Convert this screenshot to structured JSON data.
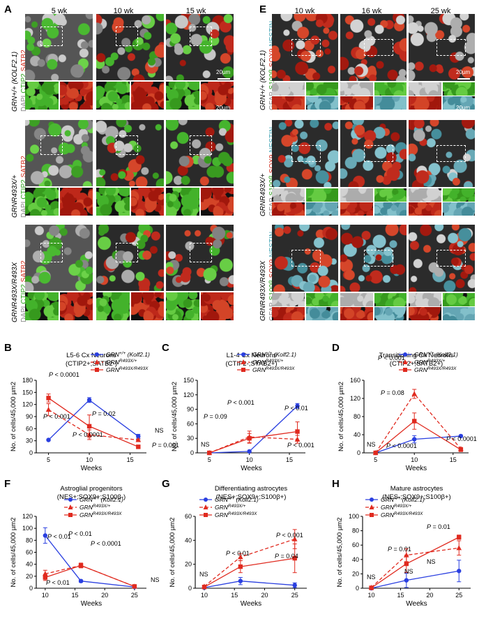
{
  "panel_A": {
    "letter": "A",
    "columns": [
      "5 wk",
      "10 wk",
      "15 wk"
    ],
    "rows": [
      {
        "genotype": "GRN+/+ (KOLF2.1)",
        "stain_dapi": "DAPI",
        "stain_ctip2": "CTIP2",
        "stain_satb2": "SATB2"
      },
      {
        "genotype": "GRNR493X/+",
        "stain_dapi": "DAPI",
        "stain_ctip2": "CTIP2",
        "stain_satb2": "SATB2"
      },
      {
        "genotype": "GRNR493X/R493X",
        "stain_dapi": "DAPI",
        "stain_ctip2": "CTIP2",
        "stain_satb2": "SATB2"
      }
    ],
    "scalebar1": "20µm",
    "scalebar2": "20µm"
  },
  "panel_E": {
    "letter": "E",
    "columns": [
      "10 wk",
      "16 wk",
      "25 wk"
    ],
    "rows": [
      {
        "genotype": "GRN+/+ (KOLF2.1)",
        "s1": "GFAP",
        "s2": "S100β",
        "s3": "SOX9",
        "s4": "NESTIN"
      },
      {
        "genotype": "GRNR493X/+",
        "s1": "GFAP",
        "s2": "S100β",
        "s3": "SOX9",
        "s4": "NESTIN"
      },
      {
        "genotype": "GRNR493X/R493X",
        "s1": "GFAP",
        "s2": "S100β",
        "s3": "SOX9",
        "s4": "NESTIN"
      }
    ],
    "scalebar1": "20µm",
    "scalebar2": "20µm"
  },
  "colors": {
    "wt": "#2a3fe0",
    "het": "#e02a1f",
    "hom": "#e02a1f"
  },
  "chart_data": [
    {
      "letter": "B",
      "type": "line",
      "title": "L5-6 Cx Neurons",
      "subtitle": "(CTIP2+;SATB2-)",
      "xlabel": "Weeks",
      "ylabel": "No. of cells/45,000 µm2",
      "x": [
        5,
        10,
        16
      ],
      "xticks": [
        5,
        10,
        15
      ],
      "xlim": [
        3.5,
        17
      ],
      "ylim": [
        0,
        180
      ],
      "yticks": [
        0,
        30,
        60,
        90,
        120,
        150,
        180
      ],
      "series": [
        {
          "name": "GRN+/+ (Kolf2.1)",
          "values": [
            32,
            131,
            41
          ],
          "err": [
            2,
            6,
            5
          ]
        },
        {
          "name": "GRNR493X/+",
          "values": [
            107,
            45,
            32
          ],
          "err": [
            15,
            12,
            2
          ]
        },
        {
          "name": "GRNR493X/R493X",
          "values": [
            136,
            66,
            15
          ],
          "err": [
            10,
            28,
            3
          ]
        }
      ],
      "annotations": [
        "P < 0.0001",
        "P < 0.001",
        "P = 0.02",
        "P < 0.0001",
        "NS",
        "P = 0.001"
      ]
    },
    {
      "letter": "C",
      "type": "line",
      "title": "L1-4 Cx Neurons",
      "subtitle": "(CTIP2-;STAB2+)",
      "xlabel": "Weeks",
      "ylabel": "No. of cells/45,000 µm2",
      "x": [
        5,
        10,
        16
      ],
      "xticks": [
        5,
        10,
        15
      ],
      "xlim": [
        3.5,
        17
      ],
      "ylim": [
        0,
        150
      ],
      "yticks": [
        0,
        30,
        60,
        90,
        120,
        150
      ],
      "series": [
        {
          "name": "GRN+/+ (Kolf2.1)",
          "values": [
            0,
            3,
            97
          ],
          "err": [
            0,
            1,
            5
          ]
        },
        {
          "name": "GRNR493X/+",
          "values": [
            0,
            33,
            28
          ],
          "err": [
            0,
            12,
            8
          ]
        },
        {
          "name": "GRNR493X/R493X",
          "values": [
            0,
            30,
            44
          ],
          "err": [
            0,
            10,
            20
          ]
        }
      ],
      "annotations": [
        "NS",
        "P = 0.09",
        "P < 0.001",
        "P < 0.01",
        "P < 0.001"
      ]
    },
    {
      "letter": "D",
      "type": "line",
      "title": "Transitioning Cx Neurons",
      "subtitle": "(CTIP2+;SATB2+)",
      "xlabel": "Weeks",
      "ylabel": "No. of cells/45,000 µm2",
      "x": [
        5,
        10,
        16
      ],
      "xticks": [
        5,
        10,
        15
      ],
      "xlim": [
        3.5,
        17
      ],
      "ylim": [
        0,
        160
      ],
      "yticks": [
        0,
        40,
        80,
        120,
        160
      ],
      "series": [
        {
          "name": "GRN+/+ (Kolf2.1)",
          "values": [
            0,
            30,
            37
          ],
          "err": [
            0,
            8,
            2
          ]
        },
        {
          "name": "GRNR493X/+",
          "values": [
            0,
            130,
            9
          ],
          "err": [
            0,
            10,
            3
          ]
        },
        {
          "name": "GRNR493X/R493X",
          "values": [
            0,
            70,
            7
          ],
          "err": [
            0,
            18,
            3
          ]
        }
      ],
      "annotations": [
        "P < 0.001",
        "P = 0.08",
        "NS",
        "P < 0.0001",
        "P < 0.0001"
      ]
    },
    {
      "letter": "F",
      "type": "line",
      "title": "Astroglial progenitors",
      "subtitle": "(NES+;SOX9+;S100β-)",
      "xlabel": "Weeks",
      "ylabel": "No. of cells/45,000 µm2",
      "x": [
        10,
        16,
        25
      ],
      "xticks": [
        10,
        15,
        20,
        25
      ],
      "xlim": [
        8.5,
        27
      ],
      "ylim": [
        0,
        120
      ],
      "yticks": [
        0,
        20,
        40,
        60,
        80,
        100,
        120
      ],
      "series": [
        {
          "name": "GRN+/+ (Kolf2.1)",
          "values": [
            88,
            12,
            2
          ],
          "err": [
            13,
            2,
            2
          ]
        },
        {
          "name": "GRNR493X/+",
          "values": [
            24,
            38,
            3
          ],
          "err": [
            6,
            4,
            2
          ]
        },
        {
          "name": "GRNR493X/R493X",
          "values": [
            18,
            38,
            3
          ],
          "err": [
            5,
            3,
            2
          ]
        }
      ],
      "annotations": [
        "P < 0.01",
        "P < 0.01",
        "P < 0.01",
        "P < 0.0001",
        "NS"
      ]
    },
    {
      "letter": "G",
      "type": "line",
      "title": "Differentiating astrocytes",
      "subtitle": "(NES+;SOX9+;S100β+)",
      "xlabel": "Weeks",
      "ylabel": "No. of cells/45,000 µm2",
      "x": [
        10,
        16,
        25
      ],
      "xticks": [
        10,
        15,
        20,
        25
      ],
      "xlim": [
        8.5,
        27
      ],
      "ylim": [
        0,
        60
      ],
      "yticks": [
        0,
        20,
        40,
        60
      ],
      "series": [
        {
          "name": "GRN+/+ (Kolf2.1)",
          "values": [
            0.5,
            6,
            2.5
          ],
          "err": [
            0.5,
            3,
            2
          ]
        },
        {
          "name": "GRNR493X/+",
          "values": [
            1.5,
            26,
            41
          ],
          "err": [
            1,
            3,
            8
          ]
        },
        {
          "name": "GRNR493X/R493X",
          "values": [
            1,
            18,
            25
          ],
          "err": [
            1,
            5,
            12
          ]
        }
      ],
      "annotations": [
        "NS",
        "P < 0.01",
        "P < 0.001",
        "P = 0.04"
      ]
    },
    {
      "letter": "H",
      "type": "line",
      "title": "Mature astrocytes",
      "subtitle": "(NES-;SOX9+;S100β+)",
      "xlabel": "Weeks",
      "ylabel": "No. of cells/45,000 µm2",
      "x": [
        10,
        16,
        25
      ],
      "xticks": [
        10,
        15,
        20,
        25
      ],
      "xlim": [
        8.5,
        27
      ],
      "ylim": [
        0,
        100
      ],
      "yticks": [
        0,
        20,
        40,
        60,
        80,
        100
      ],
      "series": [
        {
          "name": "GRN+/+ (Kolf2.1)",
          "values": [
            0,
            11,
            24
          ],
          "err": [
            0,
            10,
            15
          ]
        },
        {
          "name": "GRNR493X/+",
          "values": [
            1,
            46,
            56
          ],
          "err": [
            1,
            9,
            10
          ]
        },
        {
          "name": "GRNR493X/R493X",
          "values": [
            0.5,
            34,
            71
          ],
          "err": [
            0.5,
            12,
            3
          ]
        }
      ],
      "annotations": [
        "NS",
        "P = 0.01",
        "NS",
        "P = 0.01",
        "NS"
      ]
    }
  ]
}
